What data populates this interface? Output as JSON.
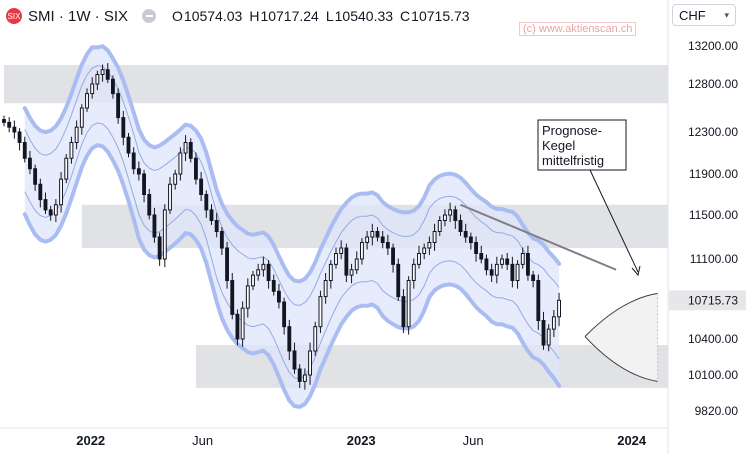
{
  "header": {
    "symbol_title": "SMI · 1W · SIX",
    "logo_text": "SIX",
    "ohlc": [
      {
        "label": "O",
        "value": "10574.03"
      },
      {
        "label": "H",
        "value": "10717.24"
      },
      {
        "label": "L",
        "value": "10540.33"
      },
      {
        "label": "C",
        "value": "10715.73"
      }
    ],
    "watermark": "(c) www.aktienscan.ch",
    "currency": "CHF"
  },
  "colors": {
    "candle": "#131722",
    "channel_fill": "#dfe6fb",
    "channel_outer": "#a9bdf2",
    "channel_inner": "#94aae6",
    "zone": "#dcdde0",
    "trendline": "#7e7f85",
    "price_tag": "#e7e7e9"
  },
  "chart_data": {
    "type": "candlestick",
    "y_axis": {
      "min": 9700,
      "max": 13400,
      "ticks": [
        13200,
        12800,
        12300,
        11900,
        11500,
        11100,
        10700,
        10400,
        10100,
        9820
      ],
      "tick_labels": [
        "13200.00",
        "12800.00",
        "12300.00",
        "11900.00",
        "11500.00",
        "11100.00",
        "10715.73",
        "10400.00",
        "10100.00",
        "9820.00"
      ],
      "current_price": 10715.73
    },
    "x_axis": {
      "labels": [
        "2022",
        "Jun",
        "2023",
        "Jun",
        "2024"
      ],
      "label_dates": [
        "2022-01-01",
        "2022-06-01",
        "2023-01-01",
        "2023-06-01",
        "2024-01-01"
      ],
      "start": "2021-09-06",
      "end": "2024-02-19"
    },
    "candles": {
      "start_date": "2021-09-06",
      "interval": "1W",
      "closes": [
        12400,
        12350,
        12300,
        12200,
        12050,
        11950,
        11800,
        11650,
        11550,
        11500,
        11600,
        11850,
        12050,
        12200,
        12350,
        12550,
        12700,
        12800,
        12900,
        12950,
        12850,
        12700,
        12450,
        12250,
        12100,
        11950,
        11900,
        11700,
        11500,
        11300,
        11100,
        11550,
        11800,
        11900,
        12100,
        12200,
        12050,
        11850,
        11700,
        11550,
        11450,
        11350,
        11200,
        10900,
        10600,
        10400,
        10650,
        10850,
        10950,
        11000,
        11050,
        10900,
        10800,
        10700,
        10500,
        10300,
        10150,
        10050,
        10100,
        10300,
        10500,
        10750,
        10900,
        11050,
        11150,
        11200,
        10950,
        11000,
        11100,
        11250,
        11300,
        11350,
        11300,
        11250,
        11200,
        11050,
        10750,
        10500,
        10900,
        11050,
        11150,
        11200,
        11250,
        11350,
        11450,
        11500,
        11550,
        11450,
        11350,
        11300,
        11250,
        11150,
        11100,
        11000,
        10950,
        11050,
        11100,
        11050,
        10900,
        11050,
        11150,
        10950,
        10900,
        10550,
        10350,
        10480,
        10580,
        10715.73
      ]
    },
    "zones": [
      {
        "x0": "2021-09-06",
        "x1": "2024-02-19",
        "y0": 12600,
        "y1": 13000
      },
      {
        "x0": "2021-12-20",
        "x1": "2024-02-19",
        "y0": 11200,
        "y1": 11600
      },
      {
        "x0": "2022-05-23",
        "x1": "2024-02-19",
        "y0": 10000,
        "y1": 10350
      }
    ],
    "trendline": {
      "x0": "2023-05-15",
      "y0": 11600,
      "x1": "2023-12-11",
      "y1": 11000
    },
    "forecast_cone": {
      "start": "2023-10-30",
      "end": "2024-02-05",
      "upper": 10780,
      "lower": 10050
    },
    "annotation": {
      "lines": [
        "Prognose-",
        "Kegel",
        "mittelfristig"
      ]
    }
  }
}
